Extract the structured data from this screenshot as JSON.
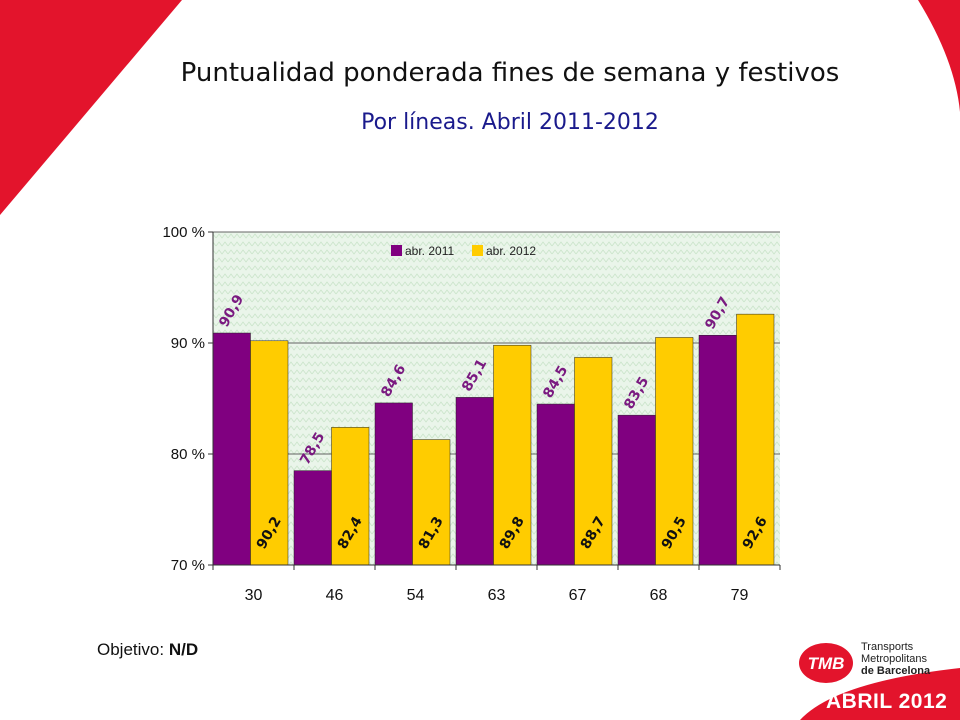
{
  "header": {
    "title": "Puntualidad ponderada fines de semana y festivos",
    "subtitle": "Por líneas. Abril 2011-2012"
  },
  "footer": {
    "objective_label": "Objetivo:",
    "objective_value": "N/D",
    "brand_logo": "TMB",
    "brand_line1": "Transports",
    "brand_line2": "Metropolitans",
    "brand_line3": "de Barcelona",
    "period_label": "ABRIL 2012"
  },
  "colors": {
    "accent_red": "#e3142c",
    "series_2011": "#800080",
    "series_2012": "#ffcc00",
    "plot_bg": "#eaf5ea",
    "label_2011": "#7a1a80",
    "label_2012": "#111111"
  },
  "chart_data": {
    "type": "bar",
    "categories": [
      "30",
      "46",
      "54",
      "63",
      "67",
      "68",
      "79"
    ],
    "series": [
      {
        "name": "abr. 2011",
        "values": [
          90.9,
          78.5,
          84.6,
          85.1,
          84.5,
          83.5,
          90.7
        ],
        "labels": [
          "90,9",
          "78,5",
          "84,6",
          "85,1",
          "84,5",
          "83,5",
          "90,7"
        ]
      },
      {
        "name": "abr. 2012",
        "values": [
          90.2,
          82.4,
          81.3,
          89.8,
          88.7,
          90.5,
          92.6
        ],
        "labels": [
          "90,2",
          "82,4",
          "81,3",
          "89,8",
          "88,7",
          "90,5",
          "92,6"
        ]
      }
    ],
    "ylim": [
      70,
      100
    ],
    "yticks": [
      70,
      80,
      90,
      100
    ],
    "ytick_labels": [
      "70 %",
      "80 %",
      "90 %",
      "100 %"
    ],
    "grid": true,
    "legend_position": "top-center"
  }
}
